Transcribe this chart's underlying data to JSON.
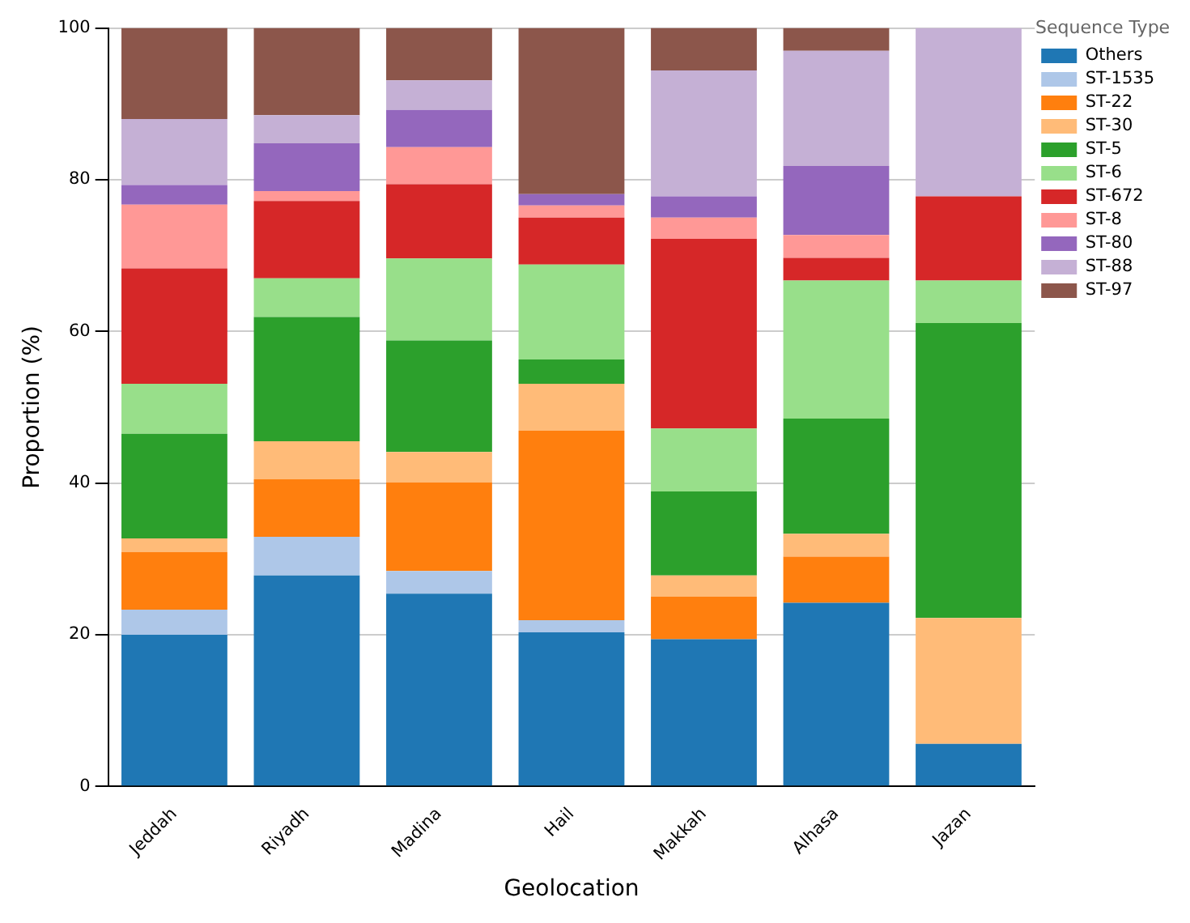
{
  "chart_data": {
    "type": "bar",
    "stacked": true,
    "xlabel": "Geolocation",
    "ylabel": "Proportion (%)",
    "legend_title": "Sequence Type",
    "categories": [
      "Jeddah",
      "Riyadh",
      "Madina",
      "Hail",
      "Makkah",
      "Alhasa",
      "Jazan"
    ],
    "series": [
      {
        "name": "Others",
        "color": "#1f77b4",
        "values": [
          20,
          27.8,
          25.4,
          20.3,
          19.4,
          24.2,
          5.6
        ]
      },
      {
        "name": "ST-1535",
        "color": "#aec7e8",
        "values": [
          3.3,
          5.1,
          3.0,
          1.6,
          0,
          0,
          0
        ]
      },
      {
        "name": "ST-22",
        "color": "#ff7f0e",
        "values": [
          7.6,
          7.6,
          11.7,
          25.0,
          5.6,
          6.1,
          0
        ]
      },
      {
        "name": "ST-30",
        "color": "#ffbb78",
        "values": [
          1.8,
          5.0,
          4.0,
          6.2,
          2.8,
          3.0,
          16.6
        ]
      },
      {
        "name": "ST-5",
        "color": "#2ca02c",
        "values": [
          13.8,
          16.4,
          14.7,
          3.2,
          11.1,
          15.2,
          38.9
        ]
      },
      {
        "name": "ST-6",
        "color": "#98df8a",
        "values": [
          6.6,
          5.1,
          10.8,
          12.5,
          8.3,
          18.2,
          5.6
        ]
      },
      {
        "name": "ST-672",
        "color": "#d62728",
        "values": [
          15.2,
          10.2,
          9.8,
          6.2,
          25.0,
          3.0,
          11.1
        ]
      },
      {
        "name": "ST-8",
        "color": "#ff9896",
        "values": [
          8.4,
          1.3,
          4.9,
          1.6,
          2.8,
          3.0,
          0
        ]
      },
      {
        "name": "ST-80",
        "color": "#9467bd",
        "values": [
          2.6,
          6.3,
          4.9,
          1.5,
          2.8,
          9.1,
          0
        ]
      },
      {
        "name": "ST-88",
        "color": "#c5b0d5",
        "values": [
          8.7,
          3.7,
          3.9,
          0,
          16.6,
          15.2,
          22.2
        ]
      },
      {
        "name": "ST-97",
        "color": "#8c564b",
        "values": [
          12.0,
          11.5,
          6.9,
          21.9,
          5.6,
          3.0,
          0
        ]
      }
    ],
    "ylim": [
      0,
      100
    ],
    "yticks": [
      0,
      20,
      40,
      60,
      80,
      100
    ],
    "grid": "y",
    "legend": "top right"
  }
}
